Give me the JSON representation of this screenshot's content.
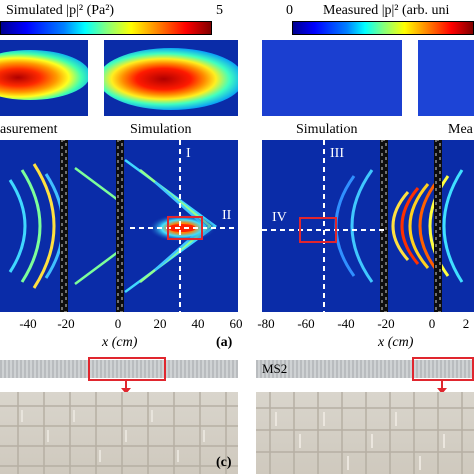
{
  "colorbar_left": {
    "title": "Simulated |p|² (Pa²)",
    "min": "",
    "max": "5"
  },
  "colorbar_right": {
    "title": "Measured |p|² (arb. uni",
    "min": "0",
    "max": ""
  },
  "row2_labels": {
    "left_a": "asurement",
    "left_b": "Simulation",
    "right_a": "Simulation",
    "right_b": "Mea"
  },
  "markers": {
    "I": "I",
    "II": "II",
    "III": "III",
    "IV": "IV"
  },
  "axis_left": {
    "ticks": [
      "-40",
      "-20",
      "0",
      "20",
      "40",
      "60"
    ],
    "xlabel": "x (cm)",
    "panel": "(a)"
  },
  "axis_right": {
    "ticks": [
      "-80",
      "-60",
      "-40",
      "-20",
      "0",
      "2"
    ],
    "xlabel": "x (cm)"
  },
  "sample_label": "MS2",
  "panel_c": "(c)",
  "colors": {
    "jet_low": "#0a2ca8",
    "jet_high": "#b00000",
    "highlight": "#e0262e",
    "strip": "#c3c6c8"
  }
}
